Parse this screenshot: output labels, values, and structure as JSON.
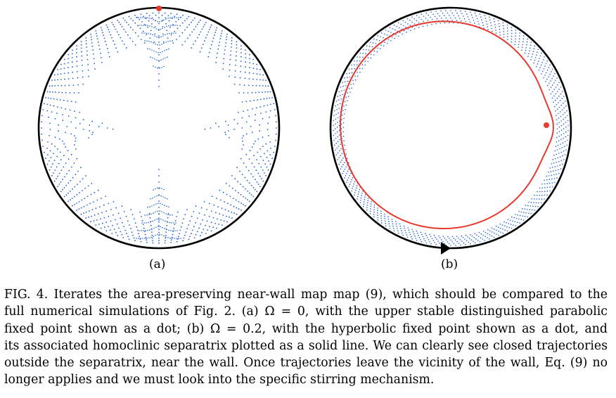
{
  "figure": {
    "panels": [
      {
        "label": "(a)",
        "description_icon": "disk-map-omega-0"
      },
      {
        "label": "(b)",
        "description_icon": "disk-map-omega-0.2"
      }
    ],
    "colors": {
      "wall": "#000000",
      "iterates": "#1f5fd8",
      "fixed_point": "#e8392f",
      "separatrix": "#e8392f"
    }
  },
  "caption": {
    "lines": [
      "FIG. 4. Iterates the area-preserving near-wall map map (9), which should be compared to the",
      "full numerical simulations of Fig. 2.  (a) Ω = 0, with the upper stable distinguished parabolic",
      "fixed point shown as a dot; (b) Ω = 0.2, with the hyperbolic fixed point shown as a dot, and",
      "its associated homoclinic separatrix plotted as a solid line. We can clearly see closed trajectories",
      "outside the separatrix, near the wall. Once trajectories leave the vicinity of the wall, Eq. (9) no",
      "longer applies and we must look into the specific stirring mechanism."
    ]
  }
}
